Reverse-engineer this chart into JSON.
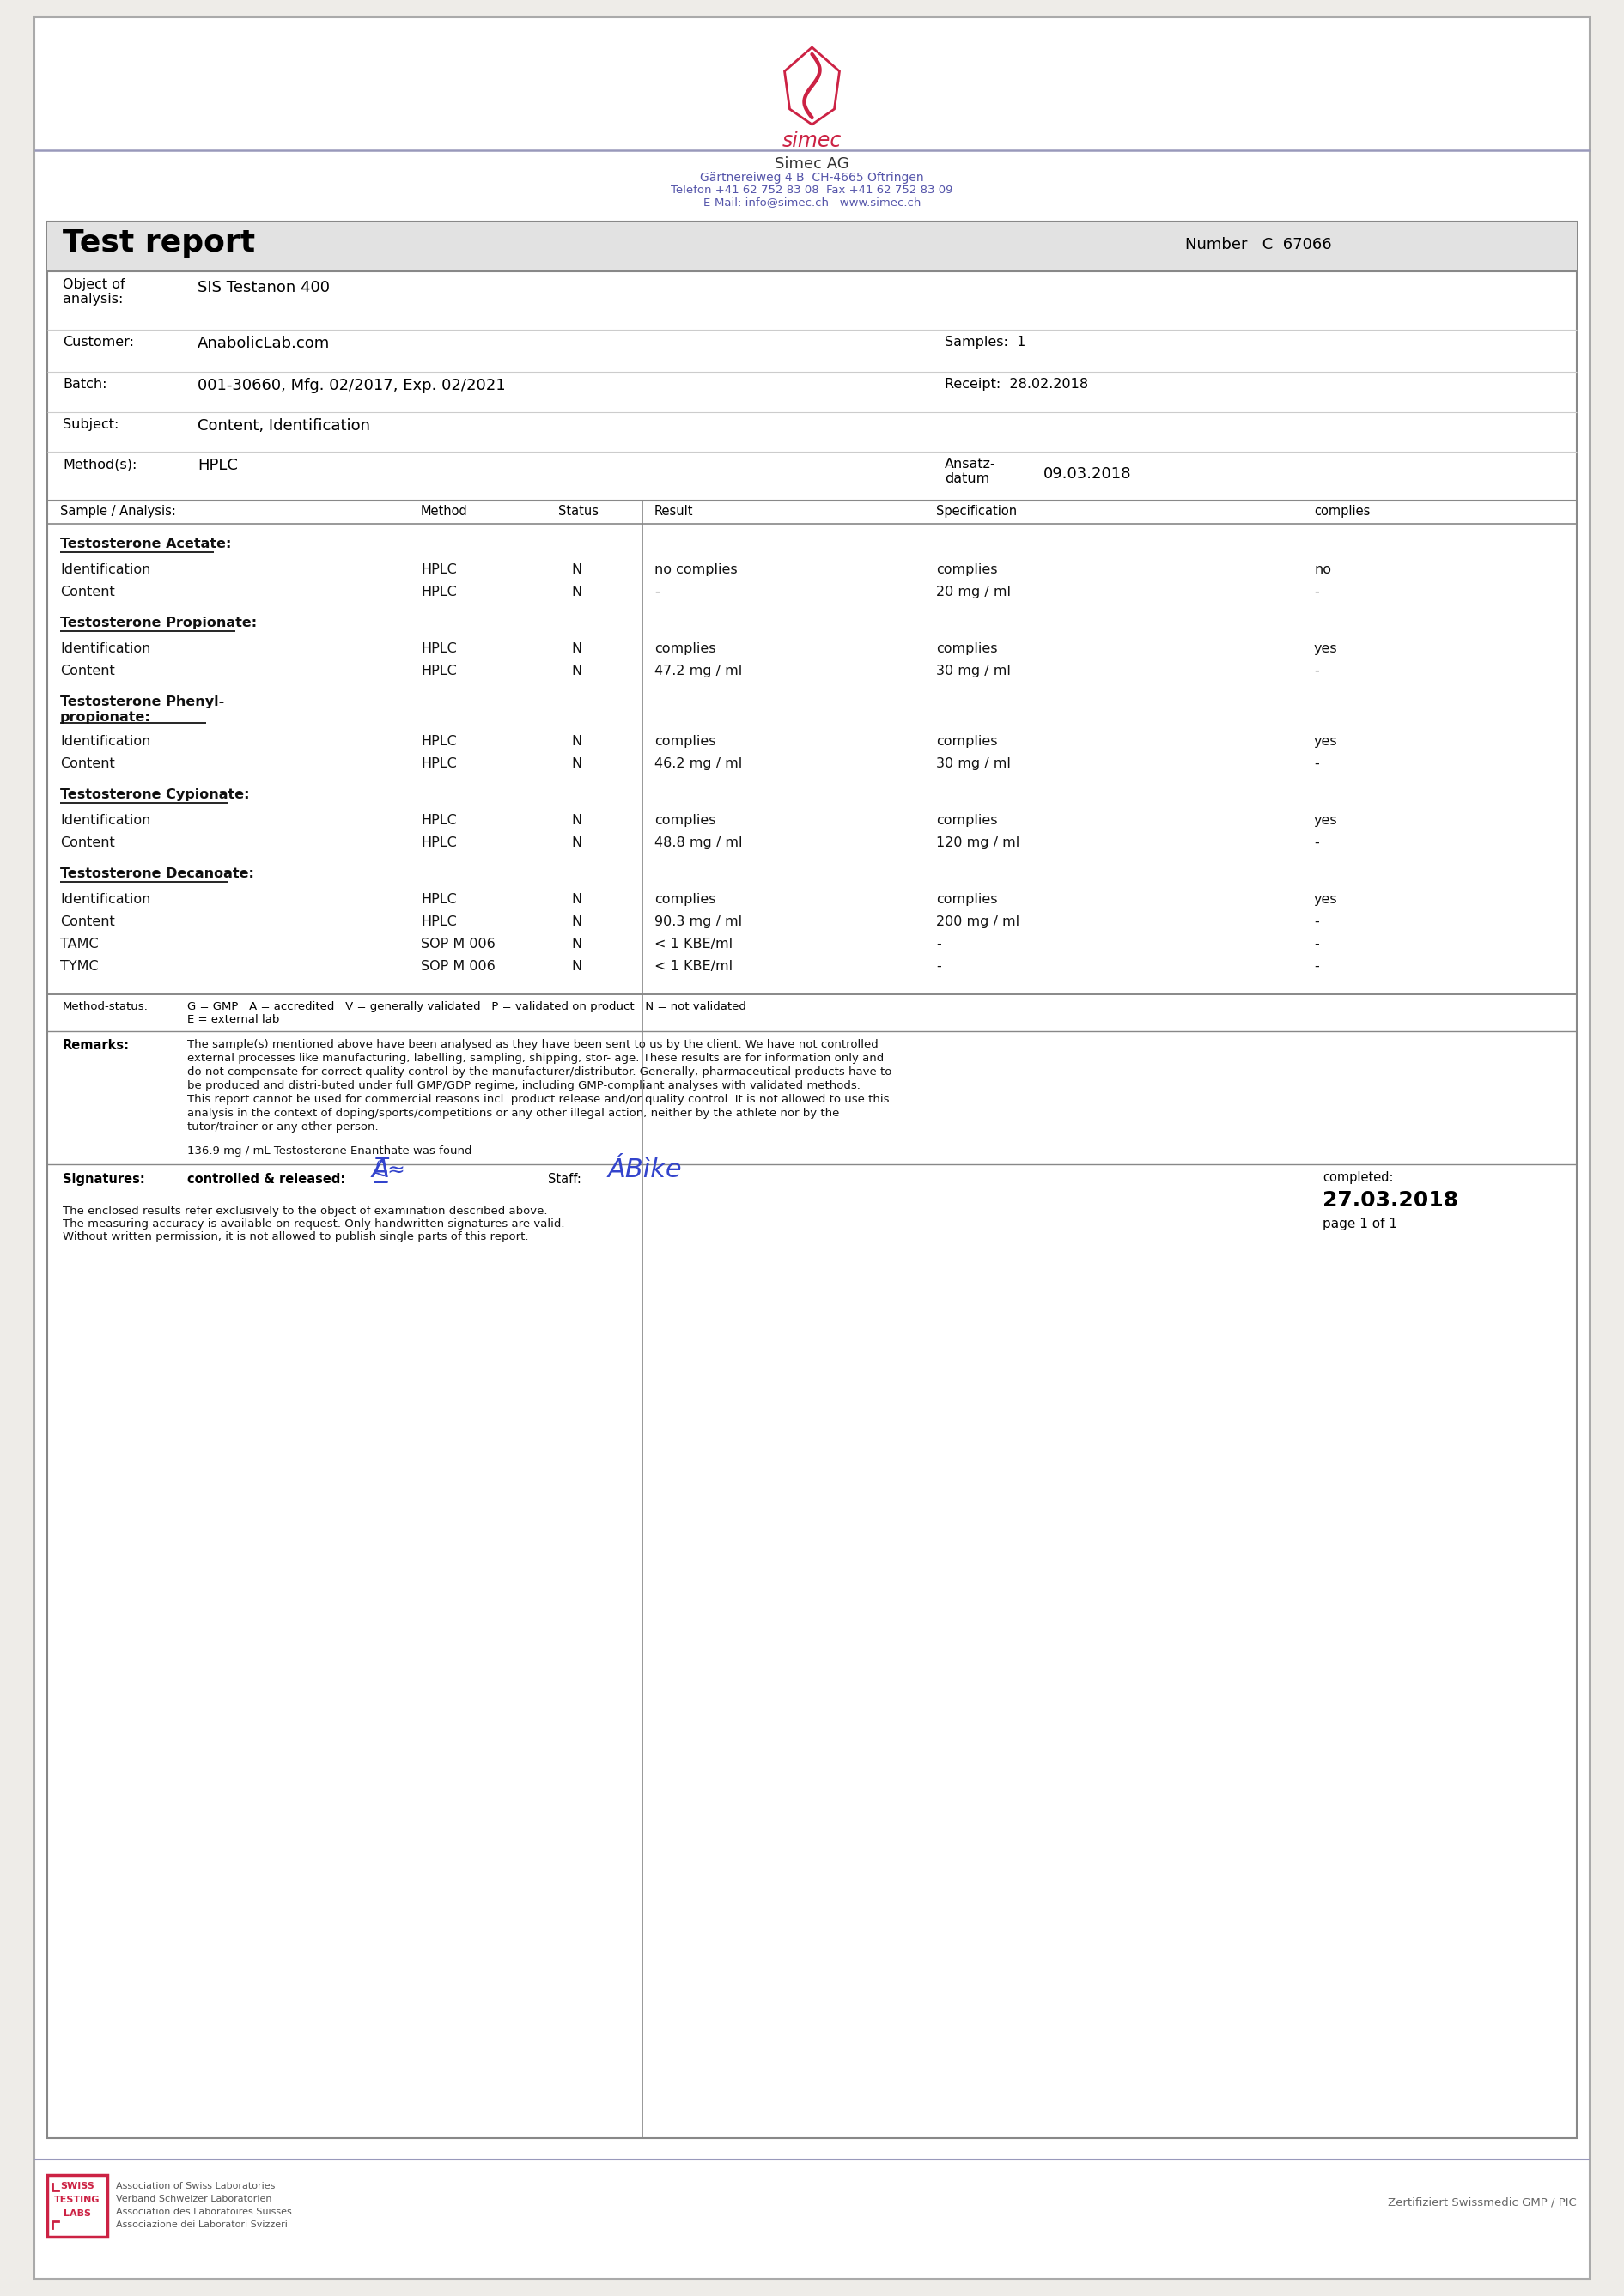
{
  "bg_color": "#eeece8",
  "page_bg": "#ffffff",
  "logo_color": "#cc2244",
  "header_blue": "#5555aa",
  "header_company": "Simec AG",
  "header_address": "Gärtnereiweg 4 B  CH-4665 Oftringen",
  "header_phone": "Telefon +41 62 752 83 08  Fax +41 62 752 83 09",
  "header_email": "E-Mail: info@simec.ch   www.simec.ch",
  "report_title": "Test report",
  "number_label": "Number",
  "number_value": "C  67066",
  "object_value": "SIS Testanon 400",
  "customer_value": "AnabolicLab.com",
  "samples_value": "1",
  "batch_value": "001-30660, Mfg. 02/2017, Exp. 02/2021",
  "receipt_value": "28.02.2018",
  "subject_value": "Content, Identification",
  "method_value": "HPLC",
  "ansatz_value": "09.03.2018",
  "rows": [
    {
      "name": "Testosterone Acetate:",
      "type": "header"
    },
    {
      "name": "Identification",
      "method": "HPLC",
      "status": "N",
      "result": "no complies",
      "spec": "complies",
      "complies": "no",
      "type": "data"
    },
    {
      "name": "Content",
      "method": "HPLC",
      "status": "N",
      "result": "-",
      "spec": "20 mg / ml",
      "complies": "-",
      "type": "data"
    },
    {
      "name": "Testosterone Propionate:",
      "type": "header"
    },
    {
      "name": "Identification",
      "method": "HPLC",
      "status": "N",
      "result": "complies",
      "spec": "complies",
      "complies": "yes",
      "type": "data"
    },
    {
      "name": "Content",
      "method": "HPLC",
      "status": "N",
      "result": "47.2 mg / ml",
      "spec": "30 mg / ml",
      "complies": "-",
      "type": "data"
    },
    {
      "name": "Testosterone Phenyl-\npropionate:",
      "type": "header"
    },
    {
      "name": "Identification",
      "method": "HPLC",
      "status": "N",
      "result": "complies",
      "spec": "complies",
      "complies": "yes",
      "type": "data"
    },
    {
      "name": "Content",
      "method": "HPLC",
      "status": "N",
      "result": "46.2 mg / ml",
      "spec": "30 mg / ml",
      "complies": "-",
      "type": "data"
    },
    {
      "name": "Testosterone Cypionate:",
      "type": "header"
    },
    {
      "name": "Identification",
      "method": "HPLC",
      "status": "N",
      "result": "complies",
      "spec": "complies",
      "complies": "yes",
      "type": "data"
    },
    {
      "name": "Content",
      "method": "HPLC",
      "status": "N",
      "result": "48.8 mg / ml",
      "spec": "120 mg / ml",
      "complies": "-",
      "type": "data"
    },
    {
      "name": "Testosterone Decanoate:",
      "type": "header"
    },
    {
      "name": "Identification",
      "method": "HPLC",
      "status": "N",
      "result": "complies",
      "spec": "complies",
      "complies": "yes",
      "type": "data"
    },
    {
      "name": "Content",
      "method": "HPLC",
      "status": "N",
      "result": "90.3 mg / ml",
      "spec": "200 mg / ml",
      "complies": "-",
      "type": "data"
    },
    {
      "name": "TAMC",
      "method": "SOP M 006",
      "status": "N",
      "result": "< 1 KBE/ml",
      "spec": "-",
      "complies": "-",
      "type": "data"
    },
    {
      "name": "TYMC",
      "method": "SOP M 006",
      "status": "N",
      "result": "< 1 KBE/ml",
      "spec": "-",
      "complies": "-",
      "type": "data"
    }
  ],
  "remarks_text": "The sample(s) mentioned above have been analysed as they have been sent to us by the client. We have not controlled\nexternal processes like manufacturing, labelling, sampling, shipping, stor- age. These results are for information only and\ndo not compensate for correct quality control by the manufacturer/distributor. Generally, pharmaceutical products have to\nbe produced and distri-buted under full GMP/GDP regime, including GMP-compliant analyses with validated methods.\nThis report cannot be used for commercial reasons incl. product release and/or quality control. It is not allowed to use this\nanalysis in the context of doping/sports/competitions or any other illegal action, neither by the athlete nor by the\ntutor/trainer or any other person.",
  "extra_finding": "136.9 mg / mL Testosterone Enanthate was found",
  "completed_date": "27.03.2018",
  "page_label": "page 1 of 1",
  "sig_note1": "The enclosed results refer exclusively to the object of examination described above.",
  "sig_note2": "The measuring accuracy is available on request. Only handwritten signatures are valid.",
  "sig_note3": "Without written permission, it is not allowed to publish single parts of this report.",
  "footer_left1": "Association of Swiss Laboratories",
  "footer_left2": "Verband Schweizer Laboratorien",
  "footer_left3": "Association des Laboratoires Suisses",
  "footer_left4": "Associazione dei Laboratori Svizzeri",
  "footer_right": "Zertifiziert Swissmedic GMP / PIC"
}
